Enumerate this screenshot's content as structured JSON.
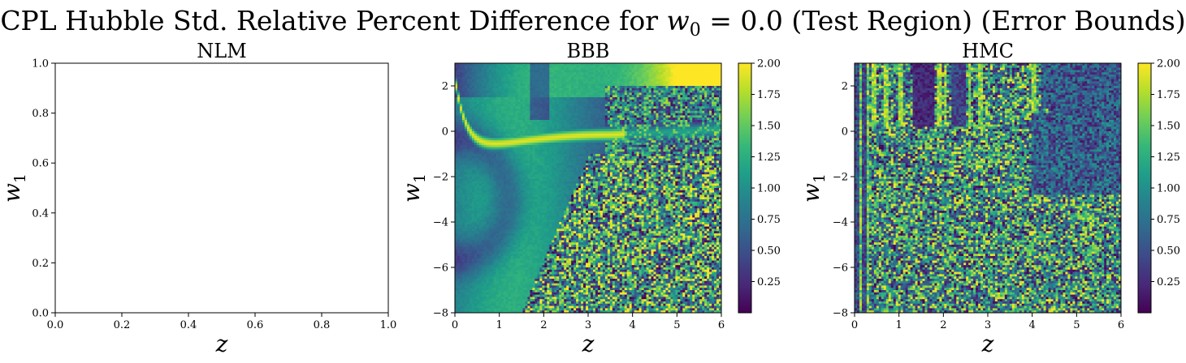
{
  "figure": {
    "title_prefix": "CPL Hubble Std. Relative Percent Difference for ",
    "title_math_var": "w",
    "title_math_sub": "0",
    "title_math_rest": " = 0.0",
    "title_suffix": " (Test Region) (Error Bounds)"
  },
  "colormap": {
    "name": "viridis",
    "stops": [
      "#440154",
      "#482878",
      "#3e4989",
      "#31688e",
      "#26828e",
      "#1f9e89",
      "#35b779",
      "#6ece58",
      "#b5de2b",
      "#fde725"
    ]
  },
  "chart_data": [
    {
      "type": "heatmap",
      "title": "NLM",
      "xlabel": "z",
      "ylabel_var": "w",
      "ylabel_sub": "1",
      "xlim": [
        0.0,
        1.0
      ],
      "ylim": [
        0.0,
        1.0
      ],
      "xticks": [
        0.0,
        0.2,
        0.4,
        0.6,
        0.8,
        1.0
      ],
      "xtick_labels": [
        "0.0",
        "0.2",
        "0.4",
        "0.6",
        "0.8",
        "1.0"
      ],
      "yticks": [
        0.0,
        0.2,
        0.4,
        0.6,
        0.8,
        1.0
      ],
      "ytick_labels": [
        "0.0",
        "0.2",
        "0.4",
        "0.6",
        "0.8",
        "1.0"
      ],
      "empty": true,
      "colorbar": false
    },
    {
      "type": "heatmap",
      "title": "BBB",
      "xlabel": "z",
      "ylabel_var": "w",
      "ylabel_sub": "1",
      "xlim": [
        0,
        6
      ],
      "ylim": [
        -8,
        3
      ],
      "xticks": [
        0,
        1,
        2,
        3,
        4,
        5,
        6
      ],
      "xtick_labels": [
        "0",
        "1",
        "2",
        "3",
        "4",
        "5",
        "6"
      ],
      "yticks": [
        -8,
        -6,
        -4,
        -2,
        0,
        2
      ],
      "ytick_labels": [
        "−8",
        "−6",
        "−4",
        "−2",
        "0",
        "2"
      ],
      "grid": [
        110,
        110
      ],
      "pattern": "bbb",
      "colorbar": true,
      "clim": [
        0.0,
        2.0
      ],
      "cbar_ticks": [
        0.25,
        0.5,
        0.75,
        1.0,
        1.25,
        1.5,
        1.75,
        2.0
      ],
      "cbar_tick_labels": [
        "0.25",
        "0.50",
        "0.75",
        "1.00",
        "1.25",
        "1.50",
        "1.75",
        "2.00"
      ]
    },
    {
      "type": "heatmap",
      "title": "HMC",
      "xlabel": "z",
      "ylabel_var": "w",
      "ylabel_sub": "1",
      "xlim": [
        0,
        6
      ],
      "ylim": [
        -8,
        3
      ],
      "xticks": [
        0,
        1,
        2,
        3,
        4,
        5,
        6
      ],
      "xtick_labels": [
        "0",
        "1",
        "2",
        "3",
        "4",
        "5",
        "6"
      ],
      "yticks": [
        -8,
        -6,
        -4,
        -2,
        0,
        2
      ],
      "ytick_labels": [
        "−8",
        "−6",
        "−4",
        "−2",
        "0",
        "2"
      ],
      "grid": [
        110,
        110
      ],
      "pattern": "hmc",
      "colorbar": true,
      "clim": [
        0.0,
        2.0
      ],
      "cbar_ticks": [
        0.25,
        0.5,
        0.75,
        1.0,
        1.25,
        1.5,
        1.75,
        2.0
      ],
      "cbar_tick_labels": [
        "0.25",
        "0.50",
        "0.75",
        "1.00",
        "1.25",
        "1.50",
        "1.75",
        "2.00"
      ]
    }
  ]
}
